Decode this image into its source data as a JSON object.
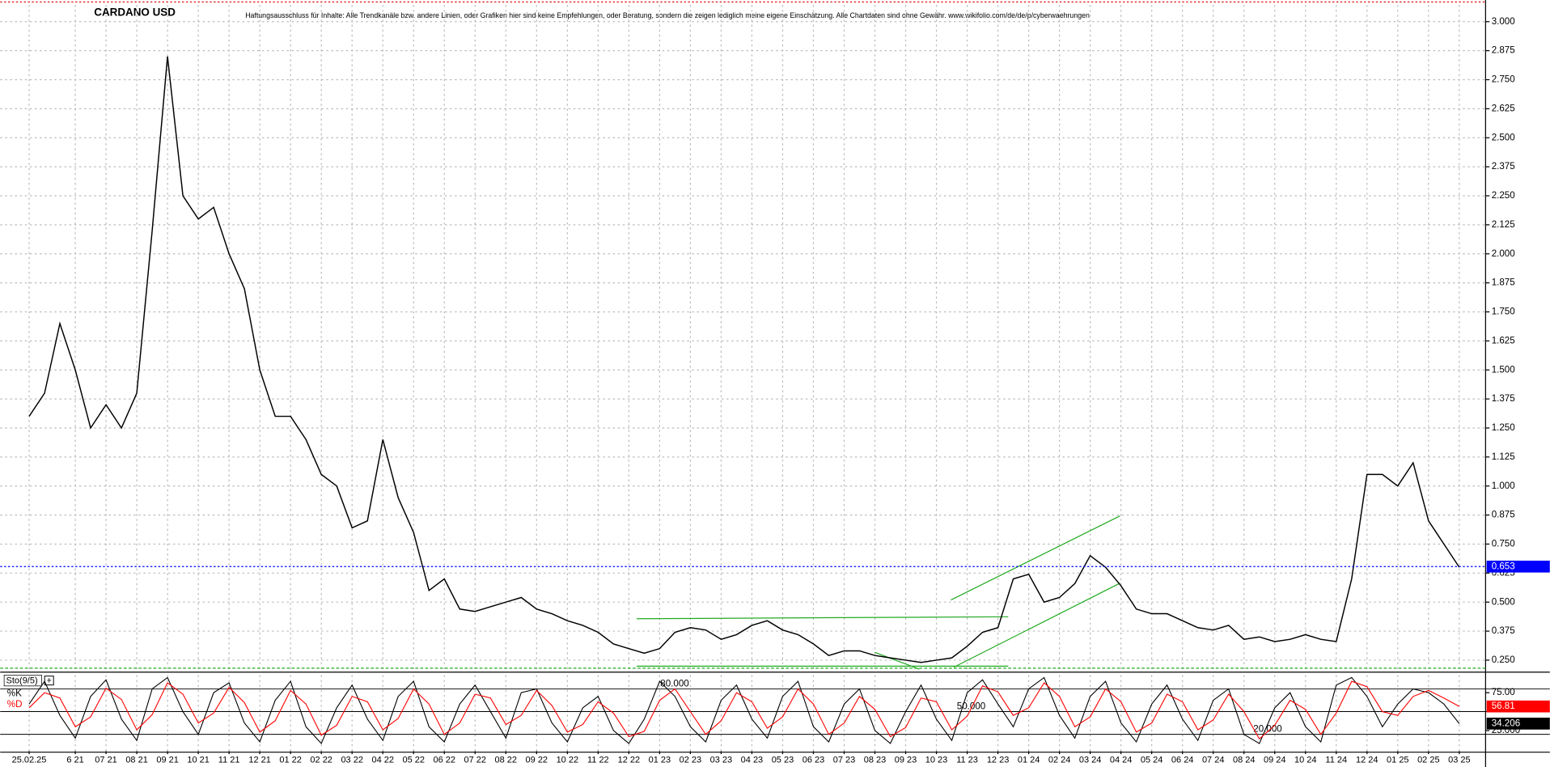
{
  "chart_data": [
    {
      "type": "line",
      "title": "CARDANO USD",
      "subtitle": "Haftungsausschluss für Inhalte: Alle Trendkanäle bzw. andere Linien, oder Grafiken hier sind keine Empfehlungen, oder Beratung, sondern die zeigen lediglich meine eigene Einschätzung. Alle Chartdaten sind ohne Gewähr.  www.wikifolio.com/de/de/p/cyberwaehrungen",
      "categories": [
        "25.02.25",
        null,
        null,
        "6 21",
        null,
        "07 21",
        null,
        "08 21",
        null,
        "09 21",
        null,
        "10 21",
        null,
        "11 21",
        null,
        "12 21",
        null,
        "01 22",
        null,
        "02 22",
        null,
        "03 22",
        null,
        "04 22",
        null,
        "05 22",
        null,
        "06 22",
        null,
        "07 22",
        null,
        "08 22",
        null,
        "09 22",
        null,
        "10 22",
        null,
        "11 22",
        null,
        "12 22",
        null,
        "01 23",
        null,
        "02 23",
        null,
        "03 23",
        null,
        "04 23",
        null,
        "05 23",
        null,
        "06 23",
        null,
        "07 23",
        null,
        "08 23",
        null,
        "09 23",
        null,
        "10 23",
        null,
        "11 23",
        null,
        "12 23",
        null,
        "01 24",
        null,
        "02 24",
        null,
        "03 24",
        null,
        "04 24",
        null,
        "05 24",
        null,
        "06 24",
        null,
        "07 24",
        null,
        "08 24",
        null,
        "09 24",
        null,
        "10 24",
        null,
        "11 24",
        null,
        "12 24",
        null,
        "01 25",
        null,
        "02 25",
        null,
        "03 25"
      ],
      "values": [
        1.3,
        1.4,
        1.7,
        1.5,
        1.25,
        1.35,
        1.25,
        1.4,
        2.1,
        2.85,
        2.25,
        2.15,
        2.2,
        2.0,
        1.85,
        1.5,
        1.3,
        1.3,
        1.2,
        1.05,
        1.0,
        0.82,
        0.85,
        1.2,
        0.95,
        0.8,
        0.55,
        0.6,
        0.47,
        0.46,
        0.48,
        0.5,
        0.52,
        0.47,
        0.45,
        0.42,
        0.4,
        0.37,
        0.32,
        0.3,
        0.28,
        0.3,
        0.37,
        0.39,
        0.38,
        0.34,
        0.36,
        0.4,
        0.42,
        0.38,
        0.36,
        0.32,
        0.27,
        0.29,
        0.29,
        0.27,
        0.26,
        0.25,
        0.24,
        0.25,
        0.26,
        0.31,
        0.37,
        0.39,
        0.6,
        0.62,
        0.5,
        0.52,
        0.58,
        0.7,
        0.65,
        0.57,
        0.47,
        0.45,
        0.45,
        0.42,
        0.39,
        0.38,
        0.4,
        0.34,
        0.35,
        0.33,
        0.34,
        0.36,
        0.34,
        0.33,
        0.6,
        1.05,
        1.05,
        1.0,
        1.1,
        0.85,
        0.75,
        0.65
      ],
      "color": "#000000",
      "current_value": 0.653,
      "current_color": "#0000ff",
      "ylim": [
        0.207,
        3.072
      ],
      "yticks": [
        {
          "value": 0.25,
          "label": "0.250"
        },
        {
          "value": 0.375,
          "label": "0.375"
        },
        {
          "value": 0.5,
          "label": "0.500"
        },
        {
          "value": 0.625,
          "label": "0.625"
        },
        {
          "value": 0.75,
          "label": "0.750"
        },
        {
          "value": 0.875,
          "label": "0.875"
        },
        {
          "value": 1.0,
          "label": "1.000"
        },
        {
          "value": 1.125,
          "label": "1.125"
        },
        {
          "value": 1.25,
          "label": "1.250"
        },
        {
          "value": 1.375,
          "label": "1.375"
        },
        {
          "value": 1.5,
          "label": "1.500"
        },
        {
          "value": 1.625,
          "label": "1.625"
        },
        {
          "value": 1.75,
          "label": "1.750"
        },
        {
          "value": 1.875,
          "label": "1.875"
        },
        {
          "value": 2.0,
          "label": "2.000"
        },
        {
          "value": 2.125,
          "label": "2.125"
        },
        {
          "value": 2.25,
          "label": "2.250"
        },
        {
          "value": 2.375,
          "label": "2.375"
        },
        {
          "value": 2.5,
          "label": "2.500"
        },
        {
          "value": 2.625,
          "label": "2.625"
        },
        {
          "value": 2.75,
          "label": "2.750"
        },
        {
          "value": 2.875,
          "label": "2.875"
        },
        {
          "value": 3.0,
          "label": "3.000"
        }
      ],
      "grid": true
    },
    {
      "type": "line",
      "title": "Sto(9/5)",
      "series": [
        {
          "name": "%K",
          "color": "#000000",
          "values": [
            60,
            90,
            45,
            15,
            70,
            92,
            40,
            12,
            80,
            95,
            50,
            20,
            75,
            88,
            35,
            10,
            65,
            90,
            30,
            8,
            55,
            85,
            40,
            12,
            70,
            90,
            30,
            10,
            60,
            85,
            50,
            15,
            75,
            80,
            35,
            10,
            55,
            70,
            25,
            8,
            40,
            90,
            70,
            30,
            10,
            65,
            85,
            40,
            15,
            70,
            90,
            30,
            10,
            60,
            80,
            25,
            8,
            50,
            85,
            40,
            12,
            75,
            92,
            60,
            30,
            80,
            95,
            45,
            15,
            70,
            90,
            35,
            10,
            60,
            85,
            40,
            12,
            65,
            80,
            20,
            8,
            55,
            75,
            30,
            10,
            85,
            95,
            70,
            30,
            60,
            80,
            75,
            60,
            34.206
          ]
        },
        {
          "name": "%D",
          "color": "#ff0000",
          "values": [
            55,
            75,
            68,
            30,
            43,
            81,
            66,
            26,
            46,
            88,
            73,
            35,
            48,
            82,
            62,
            23,
            38,
            78,
            60,
            19,
            32,
            70,
            63,
            26,
            41,
            80,
            60,
            20,
            35,
            73,
            68,
            33,
            45,
            78,
            58,
            23,
            33,
            63,
            48,
            17,
            24,
            65,
            80,
            50,
            20,
            38,
            75,
            63,
            28,
            43,
            80,
            60,
            20,
            35,
            70,
            53,
            17,
            29,
            68,
            63,
            26,
            44,
            84,
            76,
            45,
            55,
            88,
            70,
            30,
            43,
            80,
            63,
            23,
            35,
            73,
            63,
            26,
            39,
            73,
            50,
            14,
            32,
            65,
            53,
            20,
            48,
            90,
            83,
            50,
            45,
            70,
            78,
            68,
            56.81
          ]
        }
      ],
      "levels": [
        {
          "value": 80,
          "label": "80.000"
        },
        {
          "value": 50,
          "label": "50.000"
        },
        {
          "value": 20,
          "label": "20.000"
        }
      ],
      "ylim": [
        -2.2,
        98.2
      ],
      "yticks": [
        {
          "value": 75,
          "label": "75.00"
        },
        {
          "value": 25,
          "label": "25.000"
        }
      ],
      "grid": true
    }
  ]
}
